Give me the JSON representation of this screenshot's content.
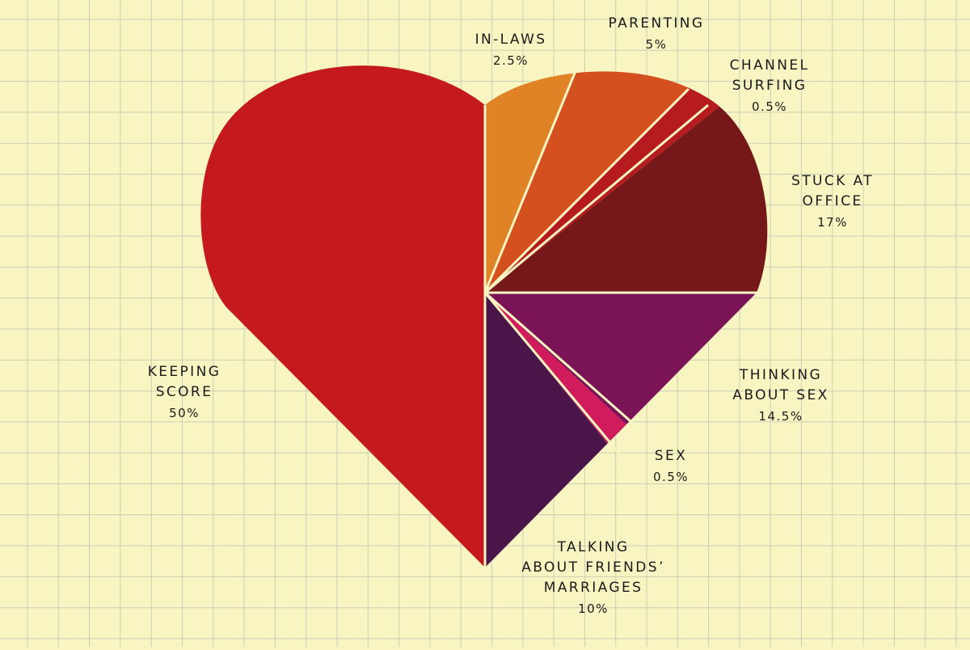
{
  "chart_data": {
    "type": "pie",
    "shape": "heart",
    "grid": true,
    "slices": [
      {
        "id": "keeping-score",
        "label_lines": [
          "KEEPING",
          "SCORE"
        ],
        "value_label": "50%",
        "value": 50,
        "color": "#c4191d"
      },
      {
        "id": "in-laws",
        "label_lines": [
          "IN-LAWS"
        ],
        "value_label": "2.5%",
        "value": 2.5,
        "color": "#e08226"
      },
      {
        "id": "parenting",
        "label_lines": [
          "PARENTING"
        ],
        "value_label": "5%",
        "value": 5,
        "color": "#d5501f"
      },
      {
        "id": "channel-surfing",
        "label_lines": [
          "CHANNEL",
          "SURFING"
        ],
        "value_label": "0.5%",
        "value": 0.5,
        "color": "#b61b1f"
      },
      {
        "id": "stuck-at-office",
        "label_lines": [
          "STUCK AT",
          "OFFICE"
        ],
        "value_label": "17%",
        "value": 17,
        "color": "#761819"
      },
      {
        "id": "thinking-about-sex",
        "label_lines": [
          "THINKING",
          "ABOUT SEX"
        ],
        "value_label": "14.5%",
        "value": 14.5,
        "color": "#7a1457"
      },
      {
        "id": "sex",
        "label_lines": [
          "SEX"
        ],
        "value_label": "0.5%",
        "value": 0.5,
        "color": "#d01b5c"
      },
      {
        "id": "talking-about-friends-marriages",
        "label_lines": [
          "TALKING",
          "ABOUT FRIENDS’",
          "MARRIAGES"
        ],
        "value_label": "10%",
        "value": 10,
        "color": "#4a164a"
      }
    ],
    "colors": {
      "background": "#f8f5c2",
      "grid": "#c8cfb6",
      "divider": "#f8f5c2"
    }
  }
}
